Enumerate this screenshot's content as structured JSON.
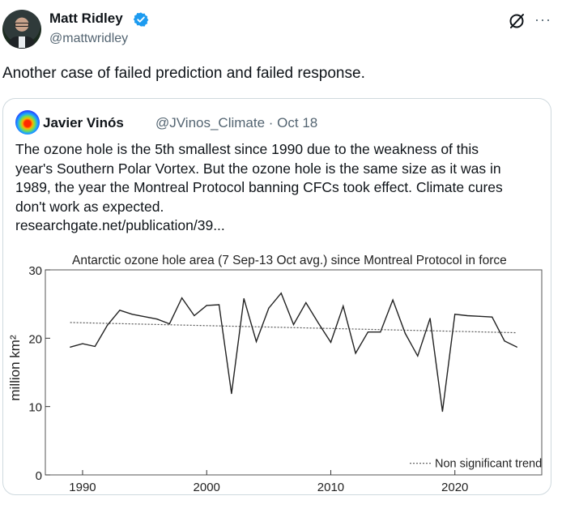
{
  "post": {
    "author_name": "Matt Ridley",
    "author_handle": "@mattwridley",
    "text": "Another case of failed prediction and failed response.",
    "more_label": "···"
  },
  "quote": {
    "author_name": "Javier Vinós",
    "author_handle": "@JVinos_Climate · Oct 18",
    "text_lines": [
      "The ozone hole is the 5th smallest since 1990 due to the weakness of this",
      "year's Southern Polar Vortex. But the ozone hole is the same size as it was in",
      "1989, the year the Montreal Protocol banning CFCs took effect. Climate cures",
      "don't work as expected.",
      "researchgate.net/publication/39..."
    ]
  },
  "colors": {
    "verified": "#1d9bf0",
    "link": "#0f1419",
    "muted": "#536471"
  },
  "chart_data": {
    "type": "line",
    "title": "Antarctic ozone hole area (7 Sep-13 Oct avg.) since Montreal Protocol in force",
    "ylabel": "million km²",
    "xlabel": "",
    "ylim": [
      0,
      30
    ],
    "xlim": [
      1987,
      2027
    ],
    "y_ticks": [
      "30",
      "20",
      "10",
      "0"
    ],
    "x_ticks": [
      "1990",
      "2000",
      "2010",
      "2020"
    ],
    "series": [
      {
        "values": [
          [
            1989,
            18.7
          ],
          [
            1990,
            19.2
          ],
          [
            1991,
            18.8
          ],
          [
            1992,
            21.9
          ],
          [
            1993,
            24.1
          ],
          [
            1994,
            23.5
          ],
          [
            1996,
            22.8
          ],
          [
            1997,
            22.1
          ],
          [
            1998,
            25.9
          ],
          [
            1999,
            23.3
          ],
          [
            2000,
            24.8
          ],
          [
            2001,
            24.9
          ],
          [
            2002,
            11.9
          ],
          [
            2003,
            25.8
          ],
          [
            2004,
            19.5
          ],
          [
            2005,
            24.4
          ],
          [
            2006,
            26.6
          ],
          [
            2007,
            22.0
          ],
          [
            2008,
            25.2
          ],
          [
            2009,
            22.2
          ],
          [
            2010,
            19.4
          ],
          [
            2011,
            24.7
          ],
          [
            2012,
            17.8
          ],
          [
            2013,
            20.9
          ],
          [
            2014,
            20.9
          ],
          [
            2015,
            25.6
          ],
          [
            2016,
            20.7
          ],
          [
            2017,
            17.4
          ],
          [
            2018,
            22.9
          ],
          [
            2019,
            9.3
          ],
          [
            2020,
            23.5
          ],
          [
            2021,
            23.3
          ],
          [
            2022,
            23.2
          ],
          [
            2023,
            23.1
          ],
          [
            2024,
            19.6
          ],
          [
            2025,
            18.7
          ]
        ]
      }
    ],
    "trend": {
      "name": "Non significant trend",
      "from": [
        1989,
        22.3
      ],
      "to": [
        2025,
        20.8
      ]
    },
    "legend_position": "bottom-right",
    "grid": false
  }
}
